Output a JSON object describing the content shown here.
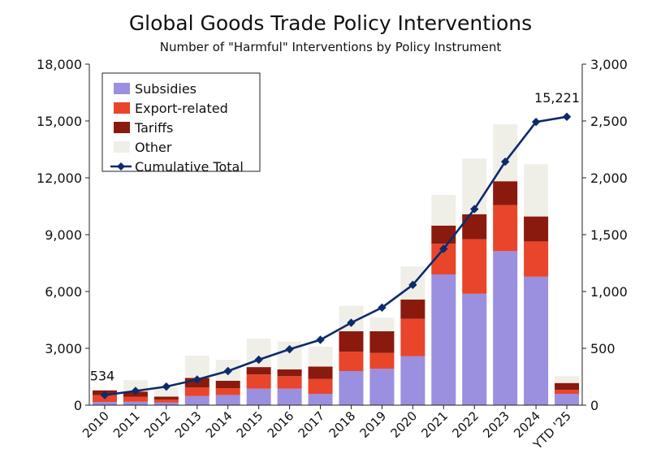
{
  "chart_data": {
    "type": "bar",
    "title": "Global Goods Trade Policy Interventions",
    "subtitle": "Number of \"Harmful\" Interventions by Policy Instrument",
    "categories": [
      "2010",
      "2011",
      "2012",
      "2013",
      "2014",
      "2015",
      "2016",
      "2017",
      "2018",
      "2019",
      "2020",
      "2021",
      "2022",
      "2023",
      "2024",
      "YTD '25"
    ],
    "stacked": true,
    "left_axis": {
      "min": 0,
      "max": 18000,
      "ticks": [
        0,
        3000,
        6000,
        9000,
        12000,
        15000,
        18000
      ],
      "tick_labels": [
        "0",
        "3,000",
        "6,000",
        "9,000",
        "12,000",
        "15,000",
        "18,000"
      ]
    },
    "right_axis": {
      "min": 0,
      "max": 3000,
      "ticks": [
        0,
        500,
        1000,
        1500,
        2000,
        2500,
        3000
      ],
      "tick_labels": [
        "0",
        "500",
        "1,000",
        "1,500",
        "2,000",
        "2,500",
        "3,000"
      ]
    },
    "series": [
      {
        "name": "Subsidies",
        "color": "#9b8fe0",
        "axis": "right",
        "values": [
          28,
          30,
          25,
          80,
          90,
          145,
          145,
          100,
          300,
          320,
          430,
          1150,
          980,
          1355,
          1130,
          100
        ]
      },
      {
        "name": "Export-related",
        "color": "#e8452b",
        "axis": "right",
        "values": [
          60,
          45,
          25,
          75,
          60,
          125,
          110,
          130,
          170,
          140,
          330,
          270,
          480,
          405,
          310,
          35
        ]
      },
      {
        "name": "Tariffs",
        "color": "#8b1a0e",
        "axis": "right",
        "values": [
          42,
          45,
          25,
          85,
          65,
          65,
          60,
          110,
          180,
          190,
          170,
          160,
          220,
          210,
          220,
          60
        ]
      },
      {
        "name": "Other",
        "color": "#efefe8",
        "axis": "right",
        "values": [
          0,
          100,
          80,
          195,
          185,
          250,
          245,
          175,
          225,
          120,
          290,
          270,
          490,
          500,
          460,
          60
        ]
      },
      {
        "name": "Cumulative Total",
        "type": "line",
        "color": "#0d2b6b",
        "axis": "left",
        "values": [
          534,
          750,
          980,
          1350,
          1800,
          2400,
          2950,
          3450,
          4350,
          5150,
          6350,
          8250,
          10350,
          12850,
          14950,
          15221
        ]
      }
    ],
    "data_labels": [
      {
        "series": "Cumulative Total",
        "category": "2010",
        "text": "534"
      },
      {
        "series": "Cumulative Total",
        "category": "YTD '25",
        "text": "15,221"
      }
    ],
    "legend": {
      "position": "top-left",
      "entries": [
        "Subsidies",
        "Export-related",
        "Tariffs",
        "Other",
        "Cumulative Total"
      ]
    },
    "grid": false
  }
}
